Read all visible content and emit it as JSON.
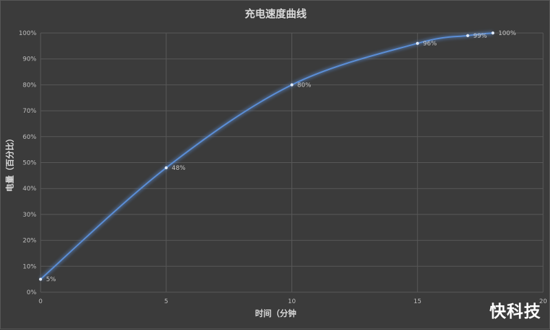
{
  "chart_data": {
    "type": "line",
    "title": "充电速度曲线",
    "xlabel": "时间（分钟",
    "ylabel": "电量（百分比）",
    "xlim": [
      0,
      20
    ],
    "ylim": [
      0,
      100
    ],
    "x_ticks": [
      0,
      5,
      10,
      15,
      20
    ],
    "y_ticks": [
      0,
      10,
      20,
      30,
      40,
      50,
      60,
      70,
      80,
      90,
      100
    ],
    "y_tick_suffix": "%",
    "grid": true,
    "legend": "none",
    "series": [
      {
        "color": "#5b8ed6",
        "points": [
          {
            "x": 0,
            "y": 5,
            "label": "5%"
          },
          {
            "x": 5,
            "y": 48,
            "label": "48%"
          },
          {
            "x": 10,
            "y": 80,
            "label": "80%"
          },
          {
            "x": 15,
            "y": 96,
            "label": "96%"
          },
          {
            "x": 17,
            "y": 99,
            "label": "99%"
          },
          {
            "x": 18,
            "y": 100,
            "label": "100%"
          }
        ]
      }
    ]
  },
  "watermark": "快科技",
  "colors": {
    "background": "#3b3b3b",
    "grid": "#595959",
    "line": "#5b8ed6",
    "text": "#d9d9d9"
  }
}
